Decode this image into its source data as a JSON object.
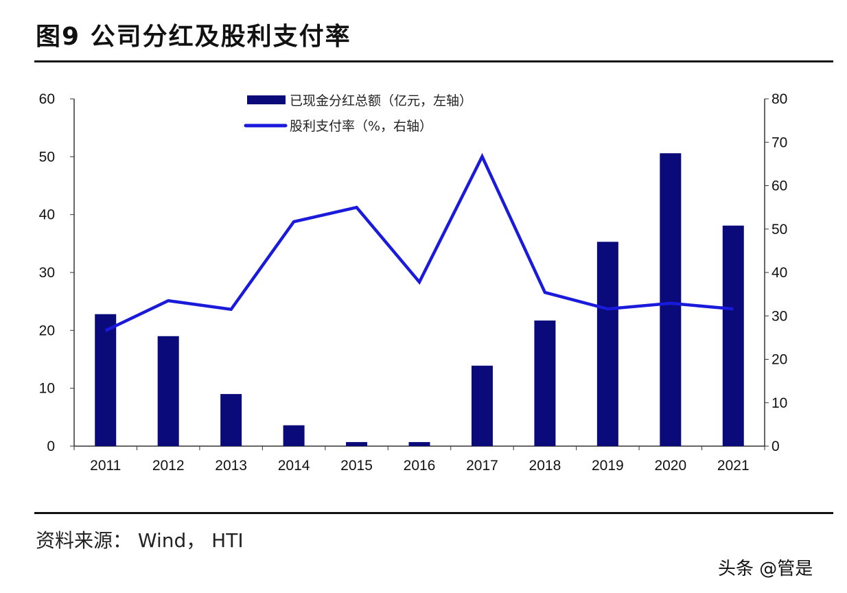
{
  "title": "图9  公司分红及股利支付率",
  "source": "资料来源：  Wind，  HTI",
  "watermark": "头条 @管是",
  "chart_data": {
    "type": "bar+line",
    "title": "",
    "categories": [
      "2011",
      "2012",
      "2013",
      "2014",
      "2015",
      "2016",
      "2017",
      "2018",
      "2019",
      "2020",
      "2021"
    ],
    "series": [
      {
        "name": "已现金分红总额（亿元，左轴）",
        "type": "bar",
        "axis": "left",
        "color": "#0a0a7a",
        "values": [
          22.8,
          19.0,
          9.0,
          3.6,
          0.7,
          0.7,
          13.9,
          21.7,
          35.3,
          50.6,
          38.1
        ]
      },
      {
        "name": "股利支付率（%，右轴）",
        "type": "line",
        "axis": "right",
        "color": "#1a1adb",
        "values": [
          26.6,
          33.5,
          31.5,
          51.7,
          55.0,
          37.8,
          66.7,
          35.4,
          31.6,
          32.9,
          31.6
        ]
      }
    ],
    "left_axis": {
      "ylim": [
        0,
        60
      ],
      "ticks": [
        "0",
        "10",
        "20",
        "30",
        "40",
        "50",
        "60"
      ]
    },
    "right_axis": {
      "ylim": [
        0,
        80
      ],
      "ticks": [
        "0",
        "10",
        "20",
        "30",
        "40",
        "50",
        "60",
        "70",
        "80"
      ]
    },
    "grid": false,
    "legend": "top-center"
  }
}
